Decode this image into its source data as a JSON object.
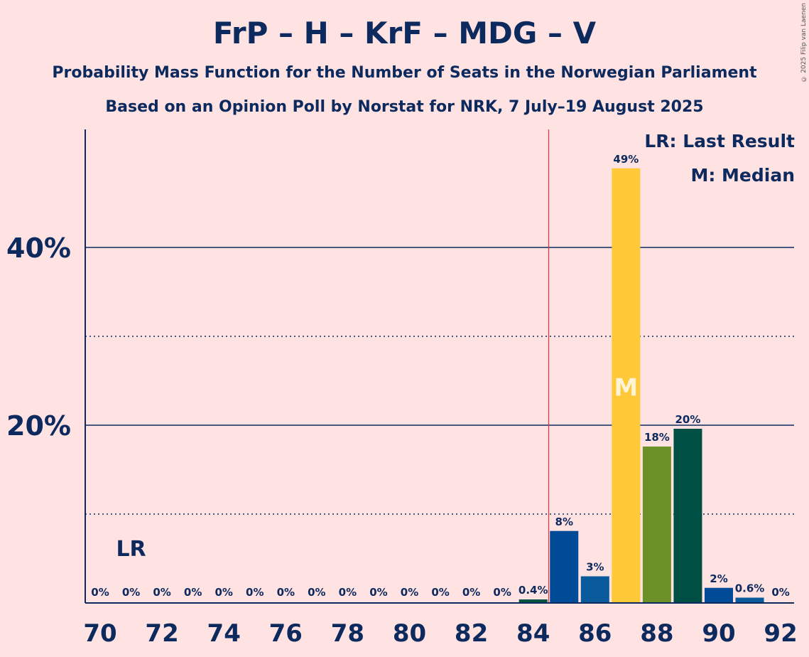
{
  "header": {
    "title": "FrP – H – KrF – MDG – V",
    "subtitle1": "Probability Mass Function for the Number of Seats in the Norwegian Parliament",
    "subtitle2": "Based on an Opinion Poll by Norstat for NRK, 7 July–19 August 2025",
    "copyright": "© 2025 Filip van Laenen"
  },
  "legend": {
    "last_result": "LR: Last Result",
    "median": "M: Median"
  },
  "chart_data": {
    "type": "bar",
    "x": [
      70,
      71,
      72,
      73,
      74,
      75,
      76,
      77,
      78,
      79,
      80,
      81,
      82,
      83,
      84,
      85,
      86,
      87,
      88,
      89,
      90,
      91,
      92
    ],
    "values": [
      0,
      0,
      0,
      0,
      0,
      0,
      0,
      0,
      0,
      0,
      0,
      0,
      0,
      0,
      0.4,
      8,
      3,
      49,
      18,
      20,
      2,
      0.6,
      0
    ],
    "plotted_values": [
      0,
      0,
      0,
      0,
      0,
      0,
      0,
      0,
      0,
      0,
      0,
      0,
      0,
      0,
      0.4,
      8.1,
      3.0,
      48.9,
      17.6,
      19.6,
      1.7,
      0.6,
      0
    ],
    "labels": [
      "0%",
      "0%",
      "0%",
      "0%",
      "0%",
      "0%",
      "0%",
      "0%",
      "0%",
      "0%",
      "0%",
      "0%",
      "0%",
      "0%",
      "0.4%",
      "8%",
      "3%",
      "49%",
      "18%",
      "20%",
      "2%",
      "0.6%",
      "0%"
    ],
    "colors": [
      "#0D2A5E",
      "#0D2A5E",
      "#0D2A5E",
      "#0D2A5E",
      "#0D2A5E",
      "#0D2A5E",
      "#0D2A5E",
      "#0D2A5E",
      "#0D2A5E",
      "#0D2A5E",
      "#0D2A5E",
      "#0D2A5E",
      "#0D2A5E",
      "#0D2A5E",
      "#005440",
      "#004B98",
      "#0A5A9C",
      "#FFC837",
      "#6B9128",
      "#004F45",
      "#004B98",
      "#0A5A9C",
      "#0D2A5E"
    ],
    "x_tick_labels": [
      "70",
      "72",
      "74",
      "76",
      "78",
      "80",
      "82",
      "84",
      "86",
      "88",
      "90",
      "92"
    ],
    "y_tick_labels": [
      "20%",
      "40%"
    ],
    "y_ticks": [
      20,
      40
    ],
    "y_minor_ticks": [
      10,
      30
    ],
    "ylim": [
      0,
      53
    ],
    "last_result": {
      "seat": 71,
      "label": "LR",
      "line_x": 84.5
    },
    "median": {
      "seat": 87,
      "label": "M"
    }
  }
}
